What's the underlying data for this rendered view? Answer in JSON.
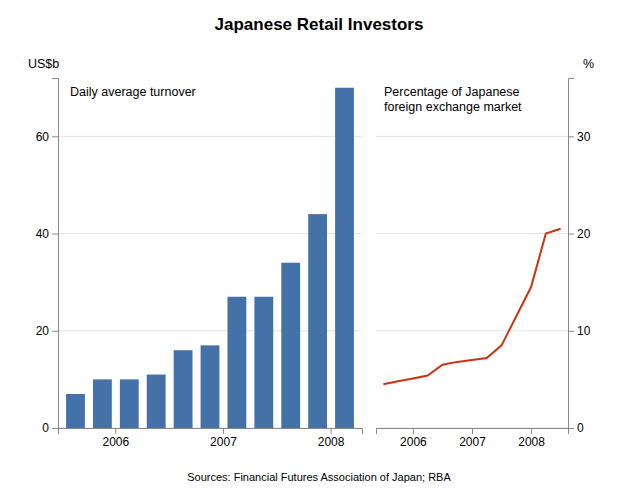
{
  "chart_data": [
    {
      "type": "bar",
      "title": "Japanese Retail Investors",
      "ylabel": "US$b",
      "annotation": "Daily average turnover",
      "source": "Sources: Financial Futures Association of Japan; RBA",
      "categories": [
        null,
        "2006",
        null,
        null,
        null,
        "2007",
        null,
        null,
        null,
        "2008",
        null
      ],
      "values": [
        7,
        10,
        10,
        11,
        16,
        17,
        27,
        27,
        34,
        44,
        70
      ],
      "color": "#4472a8",
      "ylim": [
        0,
        72
      ],
      "yticks": [
        0,
        20,
        40,
        60
      ],
      "grid": true
    },
    {
      "type": "line",
      "ylabel": "%",
      "annotation": "Percentage of Japanese\nforeign exchange market",
      "categories": [
        null,
        null,
        "2006",
        null,
        null,
        null,
        "2007",
        null,
        null,
        null,
        "2008",
        null,
        null
      ],
      "values": [
        4.5,
        4.8,
        5.1,
        5.4,
        6.5,
        6.8,
        7.0,
        7.2,
        8.5,
        11.5,
        14.5,
        20.0,
        20.5
      ],
      "color": "#cc3311",
      "ylim": [
        0,
        36
      ],
      "yticks": [
        0,
        10,
        20,
        30
      ],
      "grid": true
    }
  ]
}
